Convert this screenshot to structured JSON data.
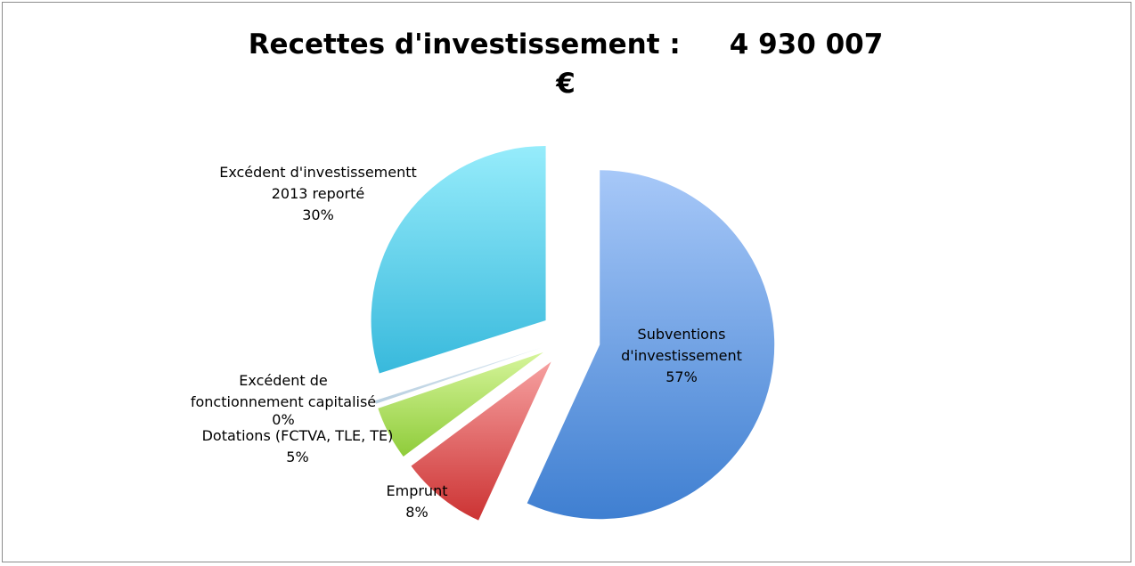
{
  "chart_data": {
    "type": "pie",
    "title_line1": "Recettes d'investissement :",
    "title_value": "4 930 007",
    "title_line2": "€",
    "total": 4930007,
    "slices": [
      {
        "label_l1": "Subventions",
        "label_l2": "d'investissement",
        "pct_label": "57%",
        "value": 57,
        "color_top": "#a7c8f8",
        "color_bottom": "#3f7fd1"
      },
      {
        "label_l1": "Emprunt",
        "label_l2": "",
        "pct_label": "8%",
        "value": 8,
        "color_top": "#f6a0a0",
        "color_bottom": "#cc3333"
      },
      {
        "label_l1": "Dotations (FCTVA, TLE, TE)",
        "label_l2": "",
        "pct_label": "5%",
        "value": 5,
        "color_top": "#d6f59b",
        "color_bottom": "#8fcc3a"
      },
      {
        "label_l1": "Excédent de",
        "label_l2": "fonctionnement capitalisé",
        "pct_label": "0%",
        "value": 0.3,
        "color_top": "#dde9f3",
        "color_bottom": "#b8cfe0"
      },
      {
        "label_l1": "Excédent d'investissementt",
        "label_l2": "2013 reporté",
        "pct_label": "30%",
        "value": 30,
        "color_top": "#96ecfb",
        "color_bottom": "#38b9dc"
      }
    ]
  }
}
